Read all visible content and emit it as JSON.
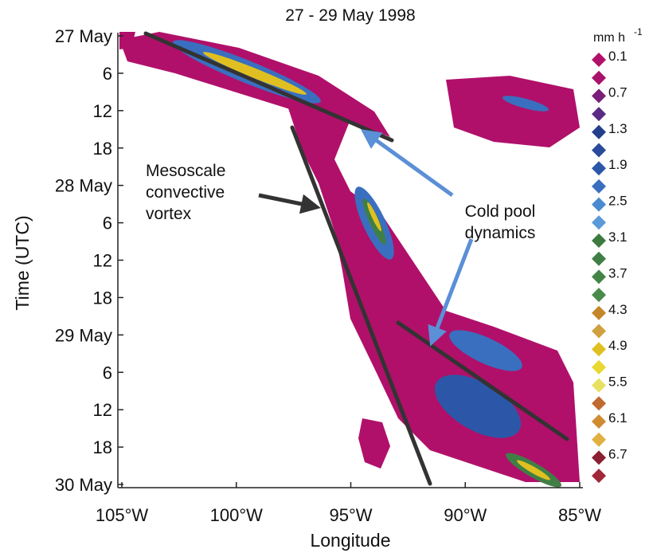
{
  "chart_data": {
    "type": "hovmoller",
    "title": "27 - 29 May 1998",
    "xlabel": "Longitude",
    "ylabel": "Time (UTC)",
    "xlim": [
      -105,
      -85
    ],
    "xticks": [
      {
        "value": -105,
        "label": "105°W"
      },
      {
        "value": -100,
        "label": "100°W"
      },
      {
        "value": -95,
        "label": "95°W"
      },
      {
        "value": -90,
        "label": "90°W"
      },
      {
        "value": -85,
        "label": "85°W"
      }
    ],
    "ylim": [
      0,
      72
    ],
    "yticks": [
      {
        "value": 0,
        "label": "27 May"
      },
      6,
      12,
      18,
      {
        "value": 24,
        "label": "28 May"
      },
      {
        "value": 30,
        "label": "6"
      },
      {
        "value": 36,
        "label": "12"
      },
      {
        "value": 42,
        "label": "18"
      },
      {
        "value": 48,
        "label": "29 May"
      },
      {
        "value": 54,
        "label": "6"
      },
      {
        "value": 60,
        "label": "12"
      },
      {
        "value": 66,
        "label": "18"
      },
      {
        "value": 72,
        "label": "30 May"
      }
    ],
    "colorbar": {
      "label": "mm h",
      "label_sup": "-1",
      "labels": [
        0.1,
        0.7,
        1.3,
        1.9,
        2.5,
        3.1,
        3.7,
        4.3,
        4.9,
        5.5,
        6.1,
        6.7
      ],
      "colors": [
        "#b0106a",
        "#a8126a",
        "#7a1f7a",
        "#5b2a86",
        "#233f8c",
        "#2a4a9a",
        "#2c57a8",
        "#3a6fc0",
        "#4a8ad0",
        "#5a9ad8",
        "#3e7a3e",
        "#3f7f45",
        "#438547",
        "#4a8a4a",
        "#c4862a",
        "#d0a040",
        "#e0c020",
        "#e8d830",
        "#e8e060",
        "#c06a30",
        "#d08a30",
        "#e0b040",
        "#8a2030",
        "#a02838"
      ]
    },
    "annotations": {
      "vortex": [
        "Mesoscale",
        "convective",
        "vortex"
      ],
      "cold_pool": [
        "Cold pool",
        "dynamics"
      ]
    }
  }
}
